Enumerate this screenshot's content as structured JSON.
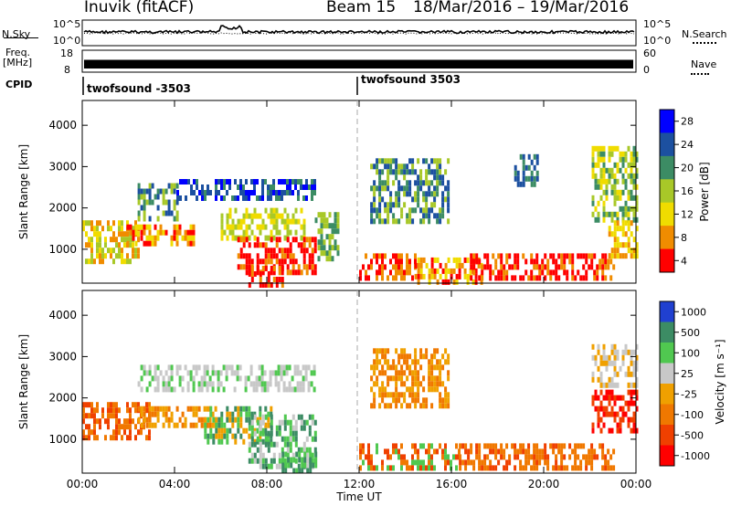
{
  "header": {
    "title": "Inuvik (fitACF)",
    "beam": "Beam 15",
    "date_range": "18/Mar/2016 – 19/Mar/2016"
  },
  "strip_panels": {
    "nsky_label": "N.Sky",
    "nsky_ticks": [
      "10^5",
      "10^0"
    ],
    "nsearch_label": "N.Search",
    "nsearch_ticks": [
      "10^5",
      "10^0"
    ],
    "freq_label_1": "Freq.",
    "freq_label_2": "[MHz]",
    "freq_ticks": [
      "18",
      "8"
    ],
    "nave_label": "Nave",
    "nave_ticks": [
      "60",
      "0"
    ],
    "cpid_label": "CPID",
    "cpid_segments": [
      "twofsound -3503",
      "twofsound 3503"
    ]
  },
  "chart_data": [
    {
      "type": "heatmap",
      "name": "power",
      "ylabel": "Slant Range [km]",
      "ylim": [
        180,
        4600
      ],
      "yticks": [
        "4000",
        "3000",
        "2000",
        "1000"
      ],
      "xticks": [],
      "colorbar_label": "Power [dB]",
      "colorbar_ticks": [
        "28",
        "24",
        "20",
        "16",
        "12",
        "8",
        "4"
      ],
      "colors": [
        "#0000ff",
        "#1c50a0",
        "#3c8c64",
        "#a8c828",
        "#f0dc00",
        "#f08c00",
        "#ff0000"
      ]
    },
    {
      "type": "heatmap",
      "name": "velocity",
      "ylabel": "Slant Range [km]",
      "ylim": [
        180,
        4600
      ],
      "yticks": [
        "4000",
        "3000",
        "2000",
        "1000"
      ],
      "xlabel": "Time UT",
      "xticks": [
        "00:00",
        "04:00",
        "08:00",
        "12:00",
        "16:00",
        "20:00",
        "00:00"
      ],
      "colorbar_label": "Velocity [m s⁻¹]",
      "colorbar_ticks": [
        "1000",
        "500",
        "100",
        "25",
        "-25",
        "-100",
        "-500",
        "-1000"
      ],
      "colors": [
        "#2040d0",
        "#3c8c64",
        "#50c850",
        "#c8c8c8",
        "#f0a000",
        "#f07800",
        "#f04000",
        "#ff0000"
      ]
    }
  ]
}
